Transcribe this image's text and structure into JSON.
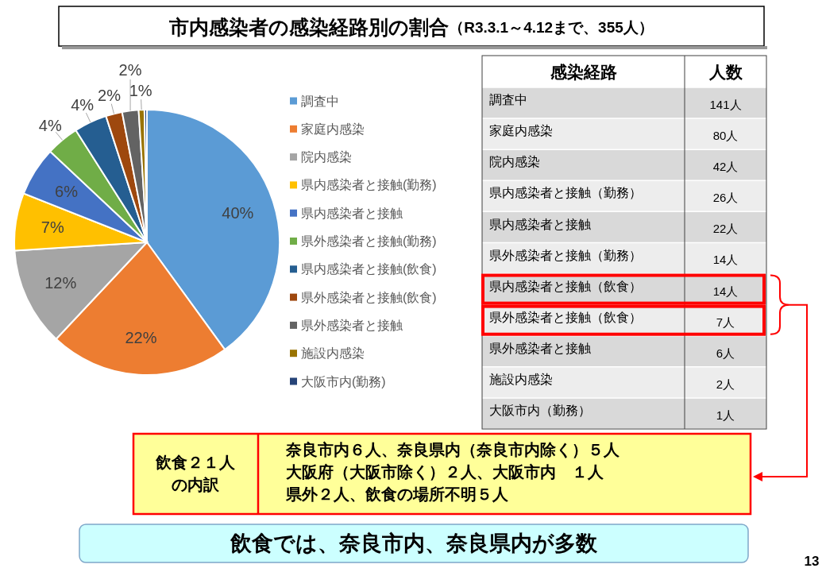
{
  "chart_data": [
    {
      "type": "pie",
      "title": "市内感染者の感染経路別の割合",
      "subtitle": "（R3.3.1～4.12まで、355人）",
      "categories": [
        "調査中",
        "家庭内感染",
        "院内感染",
        "県内感染者と接触(勤務)",
        "県内感染者と接触",
        "県外感染者と接触(勤務)",
        "県内感染者と接触(飲食)",
        "県外感染者と接触(飲食)",
        "県外感染者と接触",
        "施設内感染",
        "大阪市内(勤務)"
      ],
      "values": [
        40,
        22,
        12,
        7,
        6,
        4,
        4,
        2,
        2,
        0.7,
        0.3
      ],
      "colors": [
        "#5b9bd5",
        "#ed7d31",
        "#a5a5a5",
        "#ffc000",
        "#4472c4",
        "#70ad47",
        "#255e91",
        "#9e480e",
        "#636363",
        "#997300",
        "#264478"
      ],
      "value_labels": [
        "40%",
        "22%",
        "12%",
        "7%",
        "6%",
        "4%",
        "4%",
        "2%",
        "2%",
        "1%",
        null
      ],
      "legend": "right",
      "annotations": [
        "飲食では、奈良市内、奈良県内が多数",
        "13"
      ]
    },
    {
      "type": "other",
      "annotations": [
        "感染経路",
        "人数",
        "調査中",
        "141人",
        "家庭内感染",
        "80人",
        "院内感染",
        "42人",
        "県内感染者と接触（勤務）",
        "26人",
        "県内感染者と接触",
        "22人",
        "県外感染者と接触（勤務）",
        "14人",
        "県内感染者と接触（飲食）",
        "14人",
        "県外感染者と接触（飲食）",
        "7人",
        "県外感染者と接触",
        "6人",
        "施設内感染",
        "2人",
        "大阪市内（勤務）",
        "1人"
      ]
    },
    {
      "type": "other",
      "title": "飲食２１人の内訳",
      "annotations": [
        "奈良市内６人、奈良県内（奈良市内除く）５人",
        "大阪府（大阪市除く）２人、大阪市内　１人",
        "県外２人、飲食の場所不明５人"
      ]
    }
  ]
}
